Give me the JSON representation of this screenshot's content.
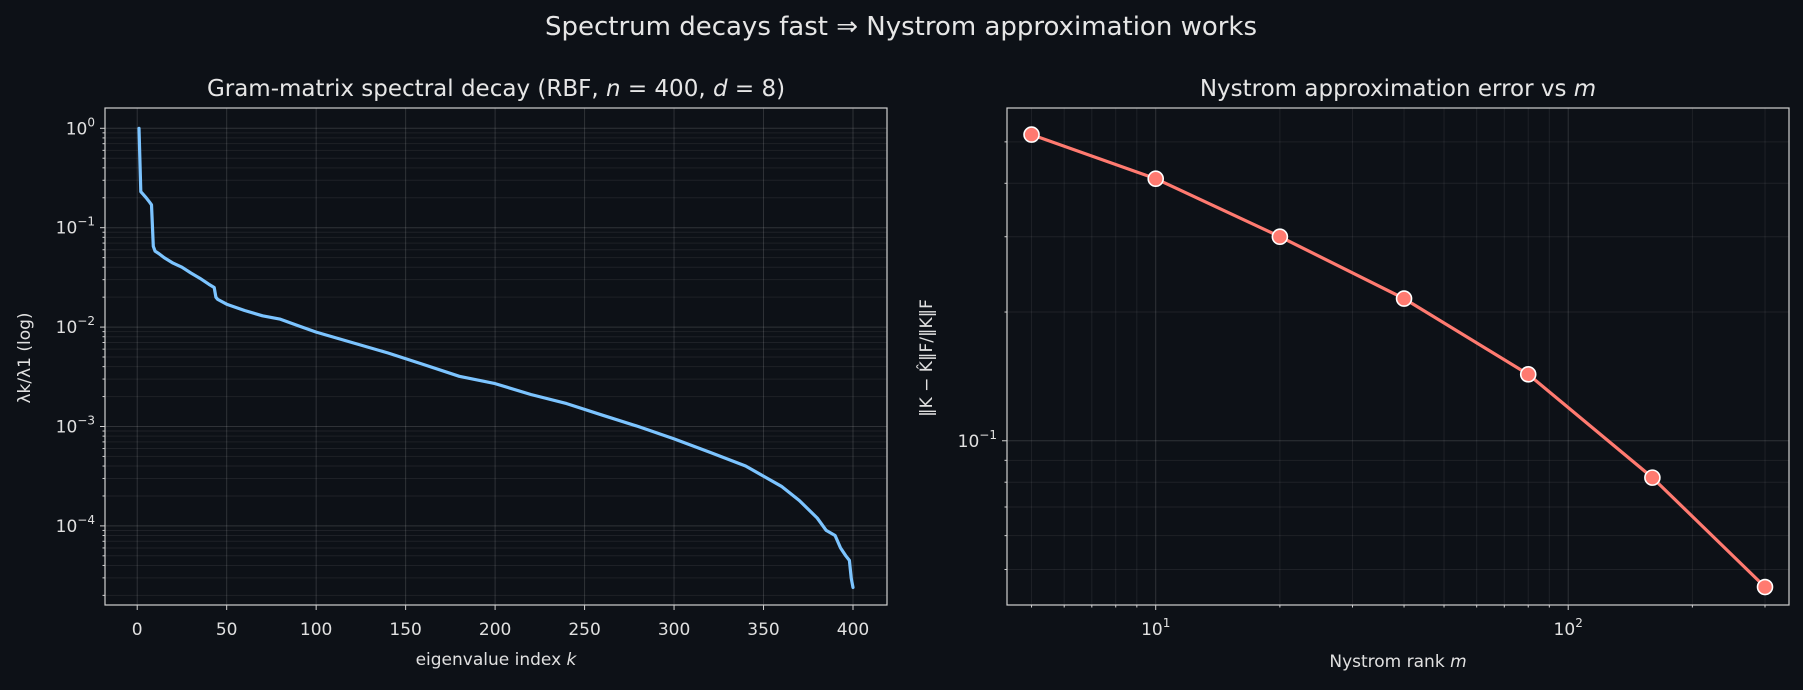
{
  "figure": {
    "suptitle": "Spectrum decays fast ⇒ Nystrom approximation works",
    "background": "#0d1117"
  },
  "chart_data": [
    {
      "type": "line",
      "title_parts": [
        "Gram-matrix spectral decay (RBF, ",
        "n",
        " = 400, ",
        "d",
        " = 8)"
      ],
      "xlabel_parts": [
        "eigenvalue index ",
        "k"
      ],
      "ylabel": "λk/λ1  (log)",
      "xlim": [
        -18,
        419
      ],
      "ylim": [
        1.6e-05,
        1.6
      ],
      "yscale": "log",
      "grid": true,
      "color": "#7cc4ff",
      "xticks": [
        0,
        50,
        100,
        150,
        200,
        250,
        300,
        350,
        400
      ],
      "xtick_labels": [
        "0",
        "50",
        "100",
        "150",
        "200",
        "250",
        "300",
        "350",
        "400"
      ],
      "yticks": [
        1,
        0.1,
        0.01,
        0.001,
        0.0001
      ],
      "ytick_labels": [
        {
          "base": "10",
          "exp": "0"
        },
        {
          "base": "10",
          "exp": "−1"
        },
        {
          "base": "10",
          "exp": "−2"
        },
        {
          "base": "10",
          "exp": "−3"
        },
        {
          "base": "10",
          "exp": "−4"
        }
      ],
      "x": [
        1,
        2,
        3,
        5,
        7,
        8,
        9,
        10,
        12,
        15,
        20,
        25,
        30,
        35,
        40,
        43,
        44,
        45,
        50,
        60,
        70,
        80,
        90,
        100,
        120,
        140,
        160,
        180,
        200,
        220,
        240,
        260,
        280,
        300,
        320,
        340,
        360,
        370,
        380,
        385,
        390,
        393,
        396,
        398,
        399,
        400
      ],
      "y": [
        1.0,
        0.23,
        0.22,
        0.2,
        0.18,
        0.17,
        0.065,
        0.058,
        0.055,
        0.05,
        0.044,
        0.04,
        0.035,
        0.031,
        0.027,
        0.025,
        0.02,
        0.019,
        0.017,
        0.0147,
        0.013,
        0.012,
        0.0103,
        0.0089,
        0.007,
        0.0055,
        0.0042,
        0.0032,
        0.0027,
        0.0021,
        0.0017,
        0.0013,
        0.001,
        0.00075,
        0.00055,
        0.0004,
        0.00025,
        0.00018,
        0.00012,
        9e-05,
        8e-05,
        6e-05,
        5e-05,
        4.5e-05,
        3e-05,
        2.4e-05
      ]
    },
    {
      "type": "line",
      "title_parts": [
        "Nystrom approximation error vs ",
        "m"
      ],
      "xlabel_parts": [
        "Nystrom rank ",
        "m"
      ],
      "ylabel": "‖K − K̂‖F/‖K‖F",
      "xlim": [
        4.36,
        343
      ],
      "ylim": [
        0.0413,
        0.6
      ],
      "xscale": "log",
      "yscale": "log",
      "grid": true,
      "color": "#ff7a70",
      "marker_color": "#ff7a70",
      "xticks": [
        10,
        100
      ],
      "xtick_labels": [
        {
          "base": "10",
          "exp": "1"
        },
        {
          "base": "10",
          "exp": "2"
        }
      ],
      "yticks": [
        0.1
      ],
      "ytick_labels": [
        {
          "base": "10",
          "exp": "−1"
        }
      ],
      "x": [
        5,
        10,
        20,
        40,
        80,
        160,
        300
      ],
      "y": [
        0.52,
        0.41,
        0.3,
        0.215,
        0.143,
        0.082,
        0.0455
      ]
    }
  ]
}
